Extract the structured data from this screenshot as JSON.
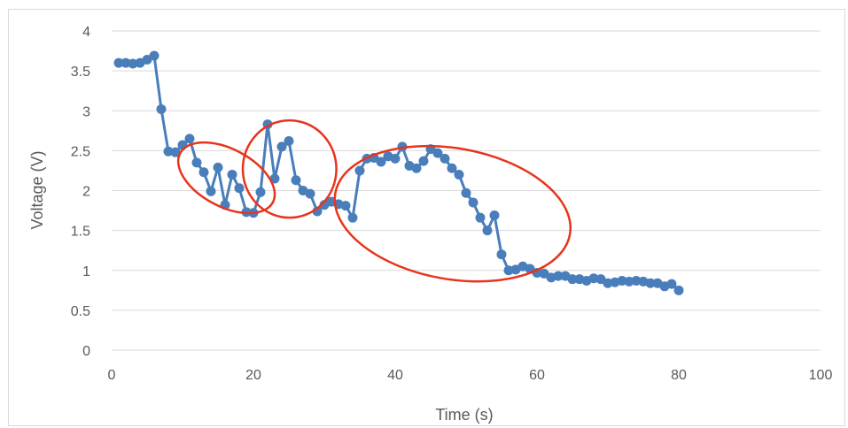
{
  "chart_data": {
    "type": "line",
    "title": "",
    "xlabel": "Time (s)",
    "ylabel": "Voltage (V)",
    "xlim": [
      0,
      100
    ],
    "ylim": [
      0,
      4
    ],
    "xticks": [
      0,
      20,
      40,
      60,
      80,
      100
    ],
    "yticks": [
      0,
      0.5,
      1,
      1.5,
      2,
      2.5,
      3,
      3.5,
      4
    ],
    "grid": true,
    "legend": "none",
    "colors": {
      "series": "#4a7ebb",
      "gridline": "#d9d9d9",
      "annotation": "#e8341c"
    },
    "series": [
      {
        "x": [
          1,
          2,
          3,
          4,
          5,
          6,
          7,
          8,
          9,
          10,
          11,
          12,
          13,
          14,
          15,
          16,
          17,
          18,
          19,
          20,
          21,
          22,
          23,
          24,
          25,
          26,
          27,
          28,
          29,
          30,
          31,
          32,
          33,
          34,
          35,
          36,
          37,
          38,
          39,
          40,
          41,
          42,
          43,
          44,
          45,
          46,
          47,
          48,
          49,
          50,
          51,
          52,
          53,
          54,
          55,
          56,
          57,
          58,
          59,
          60,
          61,
          62,
          63,
          64,
          65,
          66,
          67,
          68,
          69,
          70,
          71,
          72,
          73,
          74,
          75,
          76,
          77,
          78,
          79,
          80
        ],
        "y": [
          3.6,
          3.6,
          3.59,
          3.6,
          3.64,
          3.69,
          3.02,
          2.49,
          2.48,
          2.57,
          2.65,
          2.35,
          2.23,
          1.99,
          2.29,
          1.82,
          2.2,
          2.03,
          1.73,
          1.72,
          1.98,
          2.83,
          2.15,
          2.55,
          2.62,
          2.13,
          2.0,
          1.96,
          1.74,
          1.82,
          1.86,
          1.83,
          1.81,
          1.66,
          2.25,
          2.4,
          2.41,
          2.36,
          2.43,
          2.4,
          2.55,
          2.31,
          2.28,
          2.37,
          2.52,
          2.47,
          2.4,
          2.28,
          2.2,
          1.97,
          1.85,
          1.66,
          1.5,
          1.69,
          1.2,
          1.0,
          1.01,
          1.05,
          1.02,
          0.97,
          0.96,
          0.91,
          0.93,
          0.93,
          0.89,
          0.89,
          0.87,
          0.9,
          0.89,
          0.84,
          0.85,
          0.87,
          0.86,
          0.87,
          0.86,
          0.84,
          0.84,
          0.8,
          0.83,
          0.75
        ]
      }
    ],
    "annotations": [
      {
        "shape": "ellipse",
        "cx": 16.2,
        "cy": 2.16,
        "rx": 7.4,
        "ry": 0.36,
        "rotation_deg": 28
      },
      {
        "shape": "ellipse",
        "cx": 25.1,
        "cy": 2.27,
        "rx": 6.6,
        "ry": 0.61,
        "rotation_deg": 0
      },
      {
        "shape": "ellipse",
        "cx": 48.1,
        "cy": 1.71,
        "rx": 16.8,
        "ry": 0.82,
        "rotation_deg": 10
      }
    ]
  }
}
